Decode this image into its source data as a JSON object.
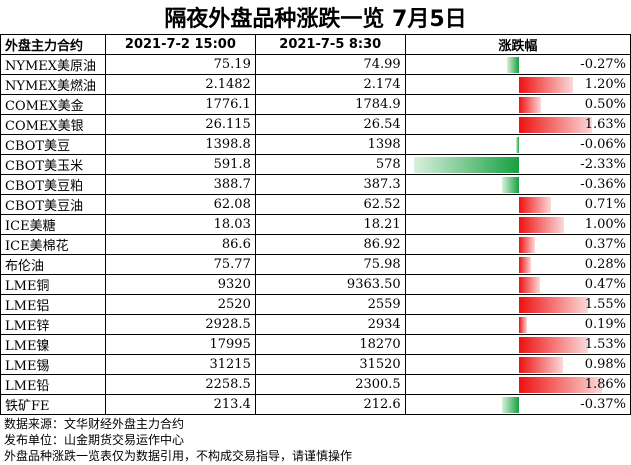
{
  "title": "隔夜外盘品种涨跌一览 7月5日",
  "colors": {
    "up": "#ee1111",
    "down": "#17a040"
  },
  "chart_data": {
    "type": "table",
    "columns": [
      "外盘主力合约",
      "2021-7-2 15:00",
      "2021-7-5 8:30",
      "涨跌幅"
    ],
    "rows": [
      {
        "name": "NYMEX美原油",
        "prev": "75.19",
        "curr": "74.99",
        "pct_label": "-0.27%",
        "pct": -0.27
      },
      {
        "name": "NYMEX美燃油",
        "prev": "2.1482",
        "curr": "2.174",
        "pct_label": "1.20%",
        "pct": 1.2
      },
      {
        "name": "COMEX美金",
        "prev": "1776.1",
        "curr": "1784.9",
        "pct_label": "0.50%",
        "pct": 0.5
      },
      {
        "name": "COMEX美银",
        "prev": "26.115",
        "curr": "26.54",
        "pct_label": "1.63%",
        "pct": 1.63
      },
      {
        "name": "CBOT美豆",
        "prev": "1398.8",
        "curr": "1398",
        "pct_label": "-0.06%",
        "pct": -0.06
      },
      {
        "name": "CBOT美玉米",
        "prev": "591.8",
        "curr": "578",
        "pct_label": "-2.33%",
        "pct": -2.33
      },
      {
        "name": "CBOT美豆粕",
        "prev": "388.7",
        "curr": "387.3",
        "pct_label": "-0.36%",
        "pct": -0.36
      },
      {
        "name": "CBOT美豆油",
        "prev": "62.08",
        "curr": "62.52",
        "pct_label": "0.71%",
        "pct": 0.71
      },
      {
        "name": "ICE美糖",
        "prev": "18.03",
        "curr": "18.21",
        "pct_label": "1.00%",
        "pct": 1.0
      },
      {
        "name": "ICE美棉花",
        "prev": "86.6",
        "curr": "86.92",
        "pct_label": "0.37%",
        "pct": 0.37
      },
      {
        "name": "布伦油",
        "prev": "75.77",
        "curr": "75.98",
        "pct_label": "0.28%",
        "pct": 0.28
      },
      {
        "name": "LME铜",
        "prev": "9320",
        "curr": "9363.50",
        "pct_label": "0.47%",
        "pct": 0.47
      },
      {
        "name": "LME铝",
        "prev": "2520",
        "curr": "2559",
        "pct_label": "1.55%",
        "pct": 1.55
      },
      {
        "name": "LME锌",
        "prev": "2928.5",
        "curr": "2934",
        "pct_label": "0.19%",
        "pct": 0.19
      },
      {
        "name": "LME镍",
        "prev": "17995",
        "curr": "18270",
        "pct_label": "1.53%",
        "pct": 1.53
      },
      {
        "name": "LME锡",
        "prev": "31215",
        "curr": "31520",
        "pct_label": "0.98%",
        "pct": 0.98
      },
      {
        "name": "LME铅",
        "prev": "2258.5",
        "curr": "2300.5",
        "pct_label": "1.86%",
        "pct": 1.86
      },
      {
        "name": "铁矿FE",
        "prev": "213.4",
        "curr": "212.6",
        "pct_label": "-0.37%",
        "pct": -0.37
      }
    ]
  },
  "notes": [
    "数据来源：文华财经外盘主力合约",
    "发布单位：山金期货交易运作中心",
    "外盘品种涨跌一览表仅为数据引用，不构成交易指导，请谨慎操作"
  ]
}
